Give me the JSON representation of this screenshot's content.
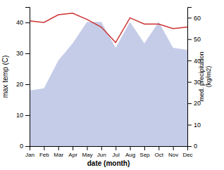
{
  "chart_data": {
    "type": "line",
    "categories": [
      "Jan",
      "Feb",
      "Mar",
      "Apr",
      "May",
      "Jun",
      "Jul",
      "Aug",
      "Sep",
      "Oct",
      "Nov",
      "Dec"
    ],
    "xlabel": "date (month)",
    "ylabel": "max temp (C)",
    "y2label": "med. precipitation\n(kg/m2)",
    "ylim": [
      0,
      45
    ],
    "yticks": [
      0,
      10,
      20,
      30,
      40
    ],
    "y2lim": [
      0,
      65
    ],
    "y2ticks": [
      0,
      10,
      20,
      30,
      40,
      50,
      60
    ],
    "grid": false,
    "series": [
      {
        "type": "area",
        "axis": "y2",
        "color": "#c5cce8",
        "values": [
          26,
          27,
          40,
          48,
          58,
          58,
          46,
          58,
          48,
          58,
          46,
          45
        ]
      },
      {
        "type": "line",
        "color": "#cc3333",
        "values": [
          40.5,
          40.0,
          42.5,
          43.0,
          41.0,
          38.5,
          33.5,
          41.5,
          39.5,
          39.5,
          38.0,
          38.5
        ]
      }
    ]
  }
}
